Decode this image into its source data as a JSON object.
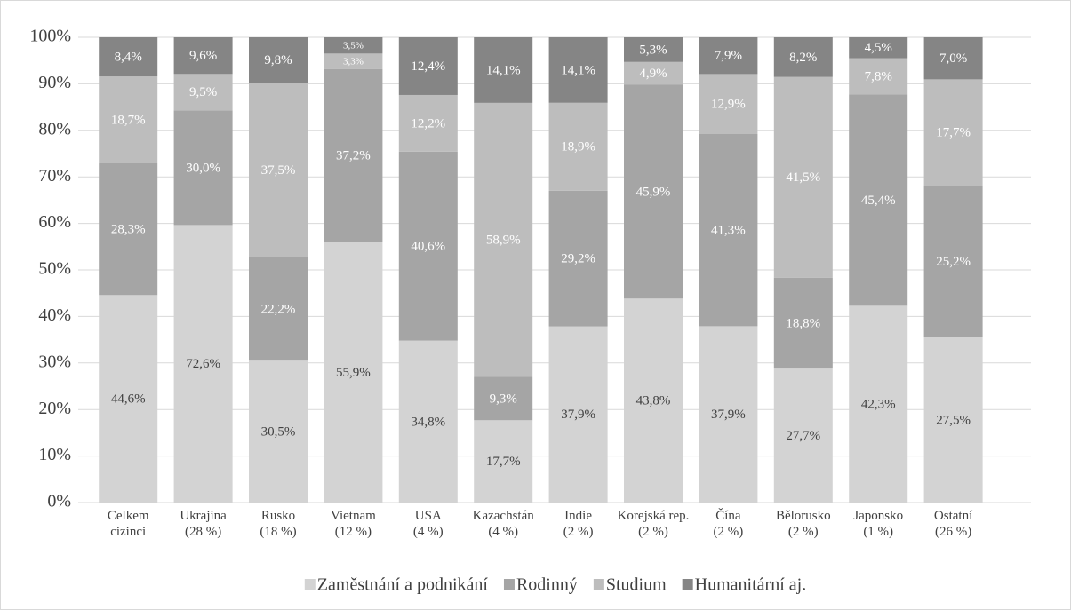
{
  "chart_data": {
    "type": "bar",
    "stacked": "percent",
    "categories": [
      "Celkem\ncizinci",
      "Ukrajina\n(28 %)",
      "Rusko\n(18 %)",
      "Vietnam\n(12 %)",
      "USA\n(4 %)",
      "Kazachstán\n(4 %)",
      "Indie\n(2 %)",
      "Korejská rep.\n(2 %)",
      "Čína\n(2 %)",
      "Bělorusko\n(2 %)",
      "Japonsko\n(1 %)",
      "Ostatní\n(26 %)"
    ],
    "series": [
      {
        "name": "Zaměstnání a podnikání",
        "color": "#d3d3d3",
        "values": [
          44.6,
          72.6,
          30.5,
          55.9,
          34.8,
          17.7,
          37.9,
          43.8,
          37.9,
          27.7,
          42.3,
          27.5
        ],
        "value_labels": [
          "44,6%",
          "72,6%",
          "30,5%",
          "55,9%",
          "34,8%",
          "17,7%",
          "37,9%",
          "43,8%",
          "37,9%",
          "27,7%",
          "42,3%",
          "27,5%"
        ]
      },
      {
        "name": "Rodinný",
        "color": "#a5a5a5",
        "values": [
          28.3,
          30.0,
          22.2,
          37.2,
          40.6,
          9.3,
          29.2,
          45.9,
          41.3,
          18.8,
          45.4,
          25.2
        ],
        "value_labels": [
          "28,3%",
          "30,0%",
          "22,2%",
          "37,2%",
          "40,6%",
          "9,3%",
          "29,2%",
          "45,9%",
          "41,3%",
          "18,8%",
          "45,4%",
          "25,2%"
        ]
      },
      {
        "name": "Studium",
        "color": "#bdbdbd",
        "values": [
          18.7,
          9.5,
          37.5,
          3.3,
          12.2,
          58.9,
          18.9,
          4.9,
          12.9,
          41.5,
          7.8,
          17.7
        ],
        "value_labels": [
          "18,7%",
          "9,5%",
          "37,5%",
          "3,3%",
          "12,2%",
          "58,9%",
          "18,9%",
          "4,9%",
          "12,9%",
          "41,5%",
          "7,8%",
          "17,7%"
        ]
      },
      {
        "name": "Humanitární aj.",
        "color": "#858585",
        "values": [
          8.4,
          9.6,
          9.8,
          3.5,
          12.4,
          14.1,
          14.1,
          5.3,
          7.9,
          8.2,
          4.5,
          7.0
        ],
        "value_labels": [
          "8,4%",
          "9,6%",
          "9,8%",
          "3,5%",
          "12,4%",
          "14,1%",
          "14,1%",
          "5,3%",
          "7,9%",
          "8,2%",
          "4,5%",
          "7,0%"
        ]
      }
    ],
    "ylim": [
      0,
      100
    ],
    "yticks": [
      {
        "value": 0,
        "label": "0%"
      },
      {
        "value": 10,
        "label": "10%"
      },
      {
        "value": 20,
        "label": "20%"
      },
      {
        "value": 30,
        "label": "30%"
      },
      {
        "value": 40,
        "label": "40%"
      },
      {
        "value": 50,
        "label": "50%"
      },
      {
        "value": 60,
        "label": "60%"
      },
      {
        "value": 70,
        "label": "70%"
      },
      {
        "value": 80,
        "label": "80%"
      },
      {
        "value": 90,
        "label": "90%"
      },
      {
        "value": 100,
        "label": "100%"
      }
    ],
    "grid": true,
    "legend": "bottom"
  }
}
